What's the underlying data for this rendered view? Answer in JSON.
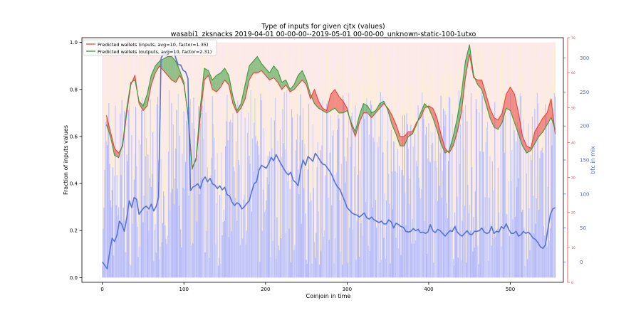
{
  "chart_data": {
    "type": "line",
    "title": "Type of inputs for given cjtx (values)",
    "subtitle": "wasabi1_zksnacks 2019-04-01 00-00-00--2019-05-01 00-00-00_unknown-static-100-1utxo",
    "xlabel": "Coinjoin in time",
    "ylabel": "Fraction of inputs values",
    "y2label": "btc in mix",
    "xlim": [
      -25,
      565
    ],
    "xticks": [
      0,
      100,
      200,
      300,
      400,
      500
    ],
    "ylim": [
      -0.02,
      1.02
    ],
    "yticks": [
      0.0,
      0.2,
      0.4,
      0.6,
      0.8,
      1.0
    ],
    "y2lim": [
      -30,
      330
    ],
    "y2ticks": [
      0,
      50,
      100,
      150,
      200,
      250,
      300
    ],
    "y3lim": [
      0,
      70
    ],
    "y3ticks": [
      0,
      10,
      20,
      30,
      40,
      50,
      60,
      70
    ],
    "legend_position": "top-left",
    "grid": false,
    "series": [
      {
        "name": "Predicted wallets (inputs, avg=10, factor=1.35)",
        "color": "#e8413a",
        "x": [
          5,
          10,
          15,
          20,
          25,
          30,
          35,
          40,
          45,
          50,
          55,
          60,
          65,
          70,
          75,
          80,
          85,
          90,
          95,
          100,
          105,
          110,
          115,
          120,
          125,
          130,
          135,
          140,
          145,
          150,
          155,
          160,
          165,
          170,
          175,
          180,
          185,
          190,
          195,
          200,
          205,
          210,
          215,
          220,
          225,
          230,
          235,
          240,
          245,
          250,
          255,
          260,
          265,
          270,
          275,
          280,
          285,
          290,
          295,
          300,
          305,
          310,
          315,
          320,
          325,
          330,
          335,
          340,
          345,
          350,
          355,
          360,
          365,
          370,
          375,
          380,
          385,
          390,
          395,
          400,
          405,
          410,
          415,
          420,
          425,
          430,
          435,
          440,
          445,
          450,
          455,
          460,
          465,
          470,
          475,
          480,
          485,
          490,
          495,
          500,
          505,
          510,
          515,
          520,
          525,
          530,
          535,
          540,
          545,
          550,
          555
        ],
        "values": [
          0.69,
          0.62,
          0.55,
          0.53,
          0.56,
          0.7,
          0.82,
          0.86,
          0.74,
          0.71,
          0.73,
          0.82,
          0.87,
          0.9,
          0.88,
          0.86,
          0.84,
          0.83,
          0.86,
          0.82,
          0.7,
          0.47,
          0.5,
          0.68,
          0.84,
          0.86,
          0.8,
          0.79,
          0.81,
          0.84,
          0.82,
          0.74,
          0.7,
          0.72,
          0.76,
          0.84,
          0.87,
          0.87,
          0.88,
          0.86,
          0.84,
          0.85,
          0.83,
          0.8,
          0.82,
          0.79,
          0.8,
          0.82,
          0.84,
          0.82,
          0.76,
          0.8,
          0.75,
          0.72,
          0.71,
          0.78,
          0.8,
          0.77,
          0.75,
          0.72,
          0.65,
          0.6,
          0.66,
          0.7,
          0.7,
          0.68,
          0.7,
          0.72,
          0.74,
          0.72,
          0.69,
          0.65,
          0.6,
          0.6,
          0.62,
          0.62,
          0.66,
          0.68,
          0.72,
          0.73,
          0.72,
          0.68,
          0.61,
          0.55,
          0.53,
          0.56,
          0.62,
          0.7,
          0.85,
          0.95,
          0.85,
          0.84,
          0.84,
          0.78,
          0.72,
          0.68,
          0.67,
          0.7,
          0.78,
          0.81,
          0.78,
          0.7,
          0.6,
          0.56,
          0.55,
          0.62,
          0.65,
          0.68,
          0.7,
          0.76,
          0.61
        ]
      },
      {
        "name": "Predicted wallets (outputs, avg=10, factor=2.31)",
        "color": "#3c9a3c",
        "x": [
          5,
          10,
          15,
          20,
          25,
          30,
          35,
          40,
          45,
          50,
          55,
          60,
          65,
          70,
          75,
          80,
          85,
          90,
          95,
          100,
          105,
          110,
          115,
          120,
          125,
          130,
          135,
          140,
          145,
          150,
          155,
          160,
          165,
          170,
          175,
          180,
          185,
          190,
          195,
          200,
          205,
          210,
          215,
          220,
          225,
          230,
          235,
          240,
          245,
          250,
          255,
          260,
          265,
          270,
          275,
          280,
          285,
          290,
          295,
          300,
          305,
          310,
          315,
          320,
          325,
          330,
          335,
          340,
          345,
          350,
          355,
          360,
          365,
          370,
          375,
          380,
          385,
          390,
          395,
          400,
          405,
          410,
          415,
          420,
          425,
          430,
          435,
          440,
          445,
          450,
          455,
          460,
          465,
          470,
          475,
          480,
          485,
          490,
          495,
          500,
          505,
          510,
          515,
          520,
          525,
          530,
          535,
          540,
          545,
          550,
          555
        ],
        "values": [
          0.65,
          0.6,
          0.52,
          0.51,
          0.57,
          0.72,
          0.83,
          0.84,
          0.75,
          0.73,
          0.78,
          0.86,
          0.9,
          0.92,
          0.93,
          0.94,
          0.94,
          0.92,
          0.88,
          0.83,
          0.69,
          0.46,
          0.51,
          0.72,
          0.89,
          0.88,
          0.84,
          0.86,
          0.87,
          0.89,
          0.86,
          0.77,
          0.71,
          0.74,
          0.82,
          0.9,
          0.92,
          0.94,
          0.91,
          0.89,
          0.87,
          0.9,
          0.88,
          0.83,
          0.84,
          0.8,
          0.82,
          0.86,
          0.88,
          0.84,
          0.78,
          0.74,
          0.72,
          0.71,
          0.7,
          0.71,
          0.72,
          0.7,
          0.7,
          0.71,
          0.66,
          0.62,
          0.69,
          0.74,
          0.73,
          0.7,
          0.71,
          0.74,
          0.75,
          0.71,
          0.65,
          0.61,
          0.56,
          0.56,
          0.6,
          0.61,
          0.65,
          0.7,
          0.74,
          0.72,
          0.68,
          0.63,
          0.57,
          0.53,
          0.54,
          0.6,
          0.68,
          0.78,
          0.92,
          0.99,
          0.86,
          0.82,
          0.8,
          0.74,
          0.68,
          0.64,
          0.63,
          0.66,
          0.72,
          0.71,
          0.66,
          0.61,
          0.56,
          0.53,
          0.54,
          0.57,
          0.6,
          0.62,
          0.65,
          0.68,
          0.63
        ]
      },
      {
        "name": "",
        "axis": "right",
        "color": "#5572d8",
        "x": [
          0,
          3,
          6,
          9,
          12,
          15,
          18,
          21,
          24,
          27,
          30,
          33,
          36,
          39,
          42,
          45,
          48,
          51,
          54,
          57,
          60,
          63,
          66,
          69,
          72,
          75,
          78,
          81,
          84,
          87,
          90,
          93,
          96,
          99,
          102,
          105,
          108,
          111,
          114,
          117,
          120,
          123,
          126,
          129,
          132,
          135,
          138,
          141,
          144,
          147,
          150,
          153,
          156,
          159,
          162,
          165,
          168,
          171,
          174,
          177,
          180,
          183,
          186,
          189,
          192,
          195,
          198,
          201,
          204,
          207,
          210,
          213,
          216,
          219,
          222,
          225,
          228,
          231,
          234,
          237,
          240,
          243,
          246,
          249,
          252,
          255,
          258,
          261,
          264,
          267,
          270,
          273,
          276,
          279,
          282,
          285,
          288,
          291,
          294,
          297,
          300,
          303,
          306,
          309,
          312,
          315,
          318,
          321,
          324,
          327,
          330,
          333,
          336,
          339,
          342,
          345,
          348,
          351,
          354,
          357,
          360,
          363,
          366,
          369,
          372,
          375,
          378,
          381,
          384,
          387,
          390,
          393,
          396,
          399,
          402,
          405,
          408,
          411,
          414,
          417,
          420,
          423,
          426,
          429,
          432,
          435,
          438,
          441,
          444,
          447,
          450,
          453,
          456,
          459,
          462,
          465,
          468,
          471,
          474,
          477,
          480,
          483,
          486,
          489,
          492,
          495,
          498,
          501,
          504,
          507,
          510,
          513,
          516,
          519,
          522,
          525,
          528,
          531,
          534,
          537,
          540,
          543,
          546,
          549,
          552,
          555
        ],
        "values": [
          0,
          -5,
          -10,
          15,
          35,
          30,
          40,
          60,
          55,
          45,
          65,
          90,
          80,
          95,
          92,
          70,
          75,
          80,
          82,
          78,
          85,
          75,
          82,
          95,
          300,
          306,
          305,
          312,
          308,
          315,
          300,
          290,
          290,
          282,
          280,
          270,
          105,
          110,
          112,
          115,
          108,
          120,
          125,
          118,
          123,
          115,
          113,
          108,
          112,
          106,
          110,
          99,
          97,
          88,
          83,
          87,
          85,
          78,
          81,
          86,
          90,
          103,
          115,
          118,
          135,
          142,
          140,
          138,
          145,
          154,
          149,
          158,
          151,
          144,
          138,
          132,
          128,
          132,
          120,
          117,
          112,
          135,
          150,
          142,
          155,
          152,
          148,
          160,
          155,
          149,
          144,
          143,
          138,
          133,
          126,
          117,
          111,
          107,
          98,
          90,
          80,
          76,
          72,
          70,
          69,
          66,
          69,
          72,
          65,
          63,
          66,
          62,
          60,
          58,
          60,
          56,
          56,
          62,
          59,
          50,
          57,
          55,
          52,
          51,
          45,
          44,
          45,
          49,
          46,
          48,
          43,
          44,
          42,
          44,
          55,
          46,
          43,
          48,
          46,
          42,
          38,
          42,
          46,
          45,
          52,
          44,
          40,
          38,
          42,
          46,
          41,
          40,
          45,
          45,
          46,
          50,
          44,
          42,
          43,
          52,
          42,
          45,
          44,
          52,
          49,
          56,
          48,
          42,
          42,
          45,
          38,
          40,
          45,
          42,
          44,
          40,
          35,
          33,
          28,
          22,
          20,
          25,
          48,
          70,
          78,
          80
        ]
      }
    ]
  }
}
